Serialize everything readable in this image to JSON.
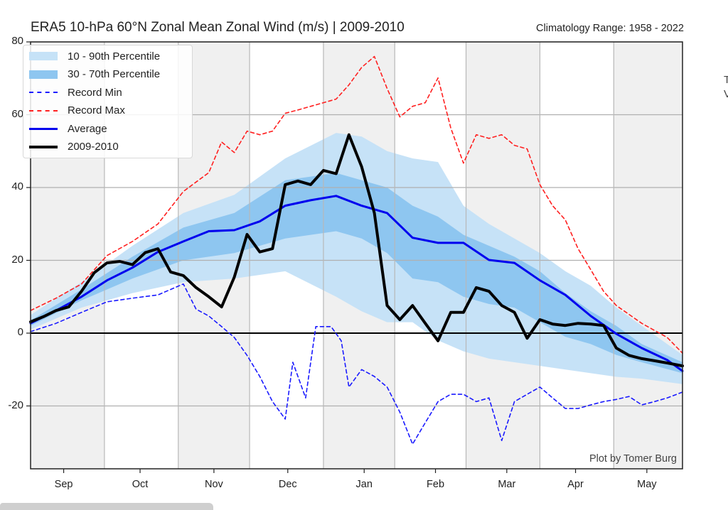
{
  "chart_data": {
    "type": "line",
    "title": "ERA5 10-hPa 60°N Zonal Mean Zonal Wind (m/s) | 2009-2010",
    "subtitle": "Climatology Range: 1958 - 2022",
    "credit": "Plot by Tomer Burg",
    "xlabel": "",
    "ylabel": "",
    "x_units": "days since Sep 1",
    "xlim": [
      0,
      256
    ],
    "ylim": [
      -38,
      80
    ],
    "yticks": [
      80,
      60,
      40,
      20,
      0,
      -20
    ],
    "ytick_labels": [
      "80",
      "60",
      "40",
      "20",
      "0",
      "-20"
    ],
    "month_labels": [
      {
        "label": "Sep",
        "day": 13
      },
      {
        "label": "Oct",
        "day": 43
      },
      {
        "label": "Nov",
        "day": 72
      },
      {
        "label": "Dec",
        "day": 101
      },
      {
        "label": "Jan",
        "day": 131
      },
      {
        "label": "Feb",
        "day": 159
      },
      {
        "label": "Mar",
        "day": 187
      },
      {
        "label": "Apr",
        "day": 214
      },
      {
        "label": "May",
        "day": 242
      }
    ],
    "month_boundaries": [
      0,
      29,
      58,
      86,
      115,
      143,
      171,
      200,
      229,
      256
    ],
    "grid": true,
    "legend_position": "top-left",
    "legend": [
      {
        "label": "10 - 90th Percentile",
        "style": "fill",
        "color": "#c6e2f7"
      },
      {
        "label": "30 - 70th Percentile",
        "style": "fill",
        "color": "#8ec6f0"
      },
      {
        "label": "Record Min",
        "style": "dashed",
        "color": "#1a1aff"
      },
      {
        "label": "Record Max",
        "style": "dashed",
        "color": "#ff2020"
      },
      {
        "label": "Average",
        "style": "solid",
        "color": "#0000ee"
      },
      {
        "label": "2009-2010",
        "style": "solid-thick",
        "color": "#000000"
      }
    ],
    "bands": {
      "x": [
        0,
        20,
        40,
        60,
        80,
        100,
        120,
        130,
        140,
        150,
        160,
        170,
        180,
        190,
        200,
        210,
        220,
        230,
        240,
        256
      ],
      "p10": [
        1,
        7,
        11,
        14,
        15,
        17,
        10,
        6,
        3,
        3,
        -2,
        -5,
        -7,
        -8,
        -9,
        -10,
        -11,
        -12,
        -12.5,
        -14
      ],
      "p30": [
        2,
        9,
        15,
        20,
        22,
        26,
        28,
        26,
        22,
        15,
        14,
        10,
        8,
        7,
        3,
        -1,
        -3,
        -6,
        -8,
        -11
      ],
      "p70": [
        3.5,
        12,
        21,
        29,
        33,
        42,
        44,
        42,
        40,
        35,
        32,
        27,
        24,
        21,
        17,
        11,
        6,
        2,
        -3,
        -8
      ],
      "p90": [
        5,
        14,
        24,
        33,
        38,
        48,
        55,
        54,
        50,
        48,
        47,
        35,
        30,
        26,
        22,
        17,
        13,
        7,
        2,
        -6
      ]
    },
    "series": [
      {
        "name": "Record Max",
        "x": [
          0,
          10,
          20,
          30,
          40,
          50,
          60,
          70,
          75,
          80,
          85,
          90,
          95,
          100,
          105,
          110,
          115,
          120,
          125,
          130,
          135,
          140,
          145,
          150,
          155,
          160,
          165,
          170,
          175,
          180,
          185,
          190,
          195,
          200,
          205,
          210,
          215,
          220,
          225,
          230,
          240,
          250,
          256
        ],
        "values": [
          6.2,
          9.6,
          13.5,
          21.3,
          25.2,
          30,
          38.9,
          44.1,
          52.5,
          49.6,
          55.5,
          54.5,
          55.5,
          60.4,
          61.3,
          62.3,
          63.3,
          64.3,
          68.2,
          73,
          76,
          67.2,
          59.4,
          62.3,
          63.3,
          70.1,
          56.4,
          46.7,
          54.5,
          53.5,
          54.5,
          51.6,
          50.6,
          40.8,
          35,
          31.1,
          23.2,
          17.4,
          11.5,
          7.6,
          2.7,
          -1.2,
          -5.5
        ]
      },
      {
        "name": "Record Min",
        "x": [
          0,
          10,
          20,
          30,
          40,
          50,
          60,
          65,
          70,
          75,
          80,
          85,
          90,
          95,
          100,
          103,
          108,
          112,
          118,
          122,
          125,
          130,
          135,
          140,
          145,
          150,
          155,
          160,
          165,
          170,
          175,
          180,
          185,
          190,
          195,
          200,
          205,
          210,
          215,
          220,
          225,
          230,
          235,
          240,
          245,
          250,
          256
        ],
        "values": [
          0.4,
          2.7,
          5.7,
          8.6,
          9.6,
          10.5,
          13.5,
          6.6,
          4.7,
          1.8,
          -1.2,
          -6.1,
          -11.9,
          -18.8,
          -23.6,
          -8,
          -17.8,
          1.8,
          1.8,
          -2.1,
          -14.8,
          -10,
          -11.9,
          -14.8,
          -21.7,
          -30.5,
          -24.6,
          -18.8,
          -16.8,
          -16.8,
          -18.8,
          -17.8,
          -29.5,
          -18.8,
          -16.8,
          -14.8,
          -17.8,
          -20.7,
          -20.7,
          -19.7,
          -18.8,
          -18.2,
          -17.4,
          -19.7,
          -18.8,
          -17.8,
          -16.2
        ]
      },
      {
        "name": "Average",
        "x": [
          0,
          10,
          20,
          30,
          40,
          50,
          60,
          70,
          80,
          90,
          100,
          110,
          120,
          130,
          140,
          150,
          160,
          170,
          180,
          190,
          200,
          210,
          220,
          230,
          240,
          250,
          256
        ],
        "values": [
          2.7,
          6.2,
          10,
          14.5,
          18,
          22.3,
          25.2,
          28,
          28.3,
          30.7,
          35,
          36.5,
          37.7,
          35,
          33,
          26.2,
          24.8,
          24.8,
          20.1,
          19.3,
          14.5,
          10.5,
          4.7,
          -0.2,
          -4.1,
          -7.4,
          -10.4
        ]
      },
      {
        "name": "2009-2010",
        "x": [
          0,
          5,
          10,
          15,
          20,
          25,
          30,
          35,
          40,
          45,
          50,
          55,
          60,
          65,
          70,
          75,
          80,
          85,
          90,
          95,
          100,
          105,
          110,
          115,
          120,
          125,
          130,
          135,
          140,
          145,
          150,
          155,
          160,
          165,
          170,
          175,
          180,
          185,
          190,
          195,
          200,
          205,
          210,
          215,
          220,
          225,
          230,
          235,
          240,
          245,
          250,
          256
        ],
        "values": [
          3.1,
          4.5,
          6.2,
          7.2,
          11.5,
          16.6,
          19.3,
          19.7,
          18.8,
          22.1,
          23.2,
          16.8,
          15.8,
          12.5,
          10,
          7.2,
          15.4,
          27.1,
          22.3,
          23.2,
          40.8,
          41.8,
          40.8,
          44.7,
          43.8,
          54.5,
          45.7,
          33,
          7.6,
          3.7,
          7.6,
          2.7,
          -2.1,
          5.7,
          5.7,
          12.5,
          11.5,
          7.6,
          5.7,
          -1.4,
          3.7,
          2.5,
          2.1,
          2.7,
          2.5,
          2.1,
          -4.1,
          -6.1,
          -7,
          -7.6,
          -8.2,
          -9
        ]
      }
    ]
  },
  "page": {
    "side_text_1": "T",
    "side_text_2": "V"
  }
}
